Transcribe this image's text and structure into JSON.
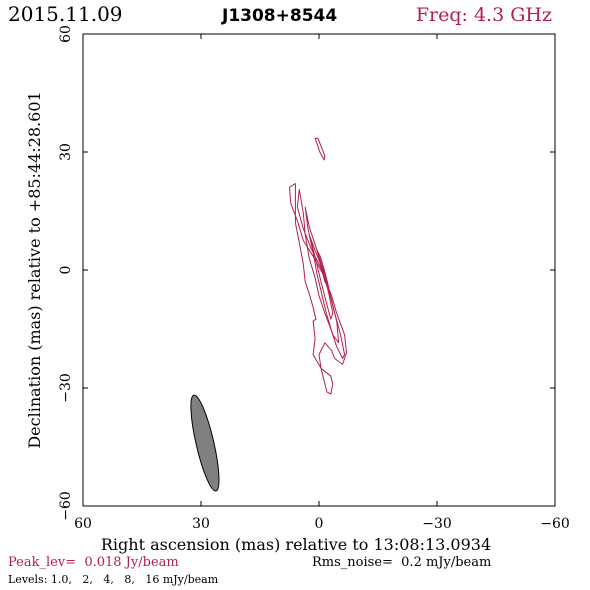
{
  "header": {
    "date": "2015.11.09",
    "source": "J1308+8544",
    "freq": "Freq: 4.3 GHz"
  },
  "footer": {
    "peak": "Peak_lev=  0.018 Jy/beam",
    "rms": "Rms_noise=  0.2 mJy/beam",
    "levels": "Levels: 1.0,   2,   4,   8,   16 mJy/beam"
  },
  "colors": {
    "contour": "#b0204a",
    "beam": "#808080",
    "freq": "#b0204a",
    "peak": "#b0204a",
    "axes": "#000000"
  },
  "chart_data": {
    "type": "contour",
    "xlabel": "Right ascension (mas) relative to 13:08:13.0934",
    "ylabel": "Declination (mas) relative to +85:44:28.601",
    "xlim": [
      60,
      -60
    ],
    "ylim": [
      -60,
      60
    ],
    "x_ticks": [
      60,
      30,
      0,
      -30,
      -60
    ],
    "y_ticks": [
      -60,
      -30,
      0,
      30,
      60
    ],
    "x_tick_labels": [
      "60",
      "30",
      "0",
      "−30",
      "−60"
    ],
    "y_tick_labels": [
      "−60",
      "−30",
      "0",
      "30",
      "60"
    ],
    "levels_mJy": [
      1.0,
      2,
      4,
      8,
      16
    ],
    "peak_Jy_per_beam": 0.018,
    "rms_mJy_per_beam": 0.2,
    "contours": [
      {
        "level": 1.0,
        "points": [
          [
            6.0,
            22.0
          ],
          [
            7.5,
            21.0
          ],
          [
            7.2,
            17.0
          ],
          [
            5.5,
            12.5
          ],
          [
            4.0,
            7.5
          ],
          [
            1.5,
            3.5
          ],
          [
            -1.0,
            -1.0
          ],
          [
            -3.0,
            -6.0
          ],
          [
            -4.5,
            -11.0
          ],
          [
            -6.5,
            -16.5
          ],
          [
            -7.0,
            -21.0
          ],
          [
            -6.0,
            -24.0
          ],
          [
            -4.0,
            -22.5
          ],
          [
            -3.2,
            -20.5
          ],
          [
            -1.5,
            -18.5
          ],
          [
            0.0,
            -21.5
          ],
          [
            -0.5,
            -25.0
          ],
          [
            -2.0,
            -31.0
          ],
          [
            -3.0,
            -31.5
          ],
          [
            -3.5,
            -29.0
          ],
          [
            -3.0,
            -27.0
          ],
          [
            -0.5,
            -25.0
          ],
          [
            1.5,
            -21.5
          ],
          [
            1.0,
            -17.5
          ],
          [
            1.5,
            -13.0
          ],
          [
            0.8,
            -12.5
          ],
          [
            1.5,
            -9.5
          ],
          [
            2.5,
            -6.0
          ],
          [
            3.5,
            -3.0
          ],
          [
            4.0,
            1.5
          ],
          [
            5.0,
            7.0
          ],
          [
            6.0,
            12.0
          ],
          [
            6.0,
            22.0
          ]
        ]
      },
      {
        "level": 2,
        "points": [
          [
            5.0,
            20.5
          ],
          [
            5.5,
            16.0
          ],
          [
            4.0,
            10.5
          ],
          [
            2.0,
            5.5
          ],
          [
            -0.5,
            0.5
          ],
          [
            -2.5,
            -5.0
          ],
          [
            -4.0,
            -11.0
          ],
          [
            -5.5,
            -16.5
          ],
          [
            -6.5,
            -21.5
          ],
          [
            -6.0,
            -22.5
          ],
          [
            -4.5,
            -19.5
          ],
          [
            -3.0,
            -15.0
          ],
          [
            -1.5,
            -11.0
          ],
          [
            0.0,
            -6.5
          ],
          [
            1.0,
            -2.0
          ],
          [
            2.5,
            3.0
          ],
          [
            3.5,
            9.0
          ],
          [
            4.0,
            14.5
          ],
          [
            5.0,
            20.5
          ]
        ]
      },
      {
        "level": 4,
        "points": [
          [
            3.5,
            16.0
          ],
          [
            2.5,
            11.0
          ],
          [
            0.5,
            5.0
          ],
          [
            -1.5,
            -1.0
          ],
          [
            -3.0,
            -7.0
          ],
          [
            -4.5,
            -13.0
          ],
          [
            -5.0,
            -18.5
          ],
          [
            -3.5,
            -16.5
          ],
          [
            -2.0,
            -11.5
          ],
          [
            -0.8,
            -6.5
          ],
          [
            0.5,
            -1.0
          ],
          [
            1.5,
            4.5
          ],
          [
            2.8,
            10.5
          ],
          [
            3.5,
            16.0
          ]
        ]
      },
      {
        "level": 8,
        "points": [
          [
            2.5,
            9.0
          ],
          [
            1.0,
            5.0
          ],
          [
            -1.0,
            0.0
          ],
          [
            -2.5,
            -6.0
          ],
          [
            -3.5,
            -11.0
          ],
          [
            -3.0,
            -12.5
          ],
          [
            -1.8,
            -8.0
          ],
          [
            -0.5,
            -3.0
          ],
          [
            0.8,
            2.5
          ],
          [
            1.8,
            6.5
          ],
          [
            2.5,
            9.0
          ]
        ]
      },
      {
        "level": 16,
        "points": [
          [
            0.5,
            5.0
          ],
          [
            -0.5,
            1.0
          ],
          [
            -1.5,
            -3.0
          ],
          [
            -2.5,
            -4.5
          ],
          [
            -1.5,
            -0.5
          ],
          [
            -0.3,
            3.5
          ],
          [
            0.5,
            5.0
          ]
        ]
      },
      {
        "level": 1.0,
        "points": [
          [
            1.0,
            33.5
          ],
          [
            -0.2,
            30.0
          ],
          [
            -1.3,
            28.0
          ],
          [
            -1.5,
            29.0
          ],
          [
            -0.5,
            31.5
          ],
          [
            0.3,
            33.5
          ],
          [
            1.0,
            33.5
          ]
        ]
      }
    ],
    "beam": {
      "x": 29,
      "y": -44,
      "major_mas": 25,
      "minor_mas": 4.5,
      "pa_deg": 13
    }
  }
}
